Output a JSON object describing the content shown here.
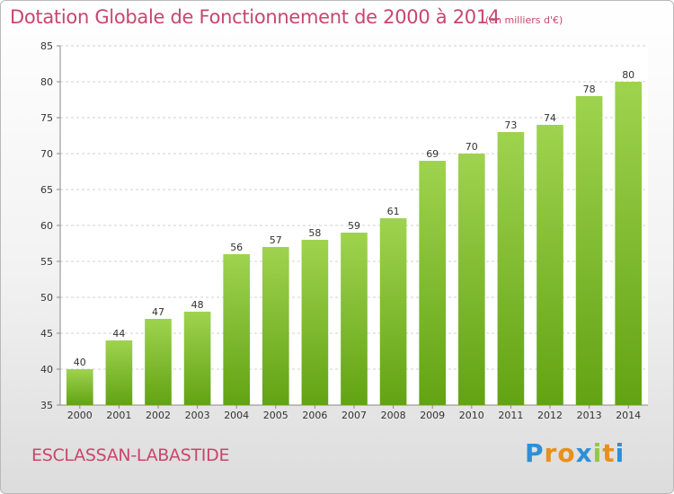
{
  "chart_data": {
    "type": "bar",
    "title": "Dotation Globale de Fonctionnement de 2000 à 2014",
    "subtitle": "(en milliers d'€)",
    "categories": [
      "2000",
      "2001",
      "2002",
      "2003",
      "2004",
      "2005",
      "2006",
      "2007",
      "2008",
      "2009",
      "2010",
      "2011",
      "2012",
      "2013",
      "2014"
    ],
    "values": [
      40,
      44,
      47,
      48,
      56,
      57,
      58,
      59,
      61,
      69,
      70,
      73,
      74,
      78,
      80
    ],
    "ylim": [
      35,
      85
    ],
    "yticks": [
      35,
      40,
      45,
      50,
      55,
      60,
      65,
      70,
      75,
      80,
      85
    ],
    "grid": true,
    "colors": {
      "bar_top": "#9fd34f",
      "bar_bottom": "#62a313",
      "title": "#c8466e"
    }
  },
  "footer": {
    "commune": "ESCLASSAN-LABASTIDE",
    "logo_letters": [
      "P",
      "r",
      "o",
      "x",
      "i",
      "t",
      "i"
    ],
    "logo_colors": [
      "#2e8fd6",
      "#e8901c",
      "#e8901c",
      "#2e8fd6",
      "#94c93d",
      "#e8901c",
      "#2e8fd6"
    ]
  }
}
